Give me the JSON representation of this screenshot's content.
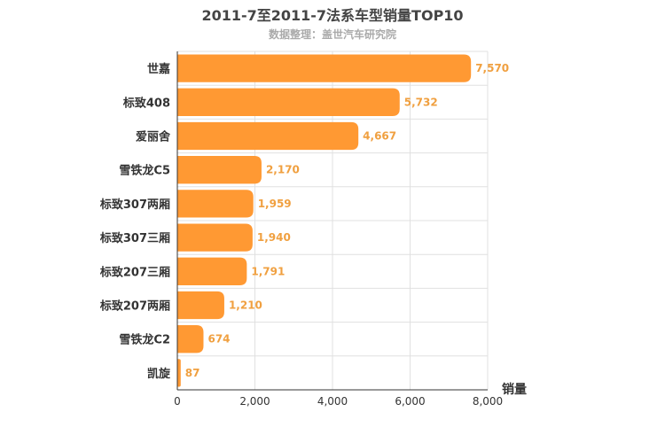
{
  "chart_data": {
    "type": "bar",
    "orientation": "horizontal",
    "title": "2011-7至2011-7法系车型销量TOP10",
    "subtitle": "数据整理：盖世汽车研究院",
    "xlabel": "销量",
    "ylabel": "",
    "xlim": [
      0,
      8000
    ],
    "x_ticks": [
      "0",
      "2,000",
      "4,000",
      "6,000",
      "8,000"
    ],
    "x_tick_values": [
      0,
      2000,
      4000,
      6000,
      8000
    ],
    "grid": true,
    "bar_color": "#ff9933",
    "label_color": "#f0a040",
    "categories": [
      "世嘉",
      "标致408",
      "爱丽舍",
      "雪铁龙C5",
      "标致307两厢",
      "标致307三厢",
      "标致207三厢",
      "标致207两厢",
      "雪铁龙C2",
      "凯旋"
    ],
    "values": [
      7570,
      5732,
      4667,
      2170,
      1959,
      1940,
      1791,
      1210,
      674,
      87
    ],
    "value_labels": [
      "7,570",
      "5,732",
      "4,667",
      "2,170",
      "1,959",
      "1,940",
      "1,791",
      "1,210",
      "674",
      "87"
    ]
  }
}
